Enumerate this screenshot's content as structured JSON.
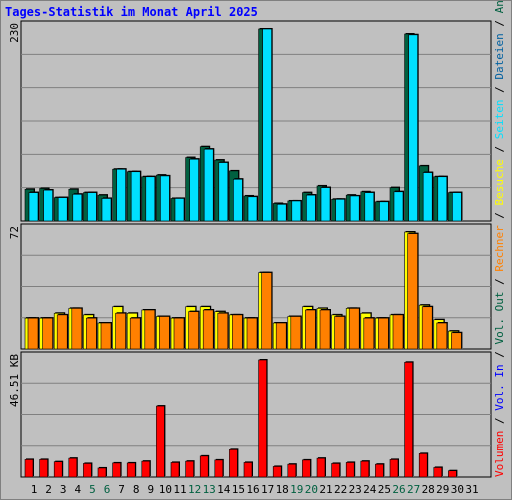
{
  "title": "Tages-Statistik im Monat April 2025",
  "chart_data": {
    "type": "bar",
    "categories": [
      "1",
      "2",
      "3",
      "4",
      "5",
      "6",
      "7",
      "8",
      "9",
      "10",
      "11",
      "12",
      "13",
      "14",
      "15",
      "16",
      "17",
      "18",
      "19",
      "20",
      "21",
      "22",
      "23",
      "24",
      "25",
      "26",
      "27",
      "28",
      "29",
      "30",
      "31"
    ],
    "weekend_color": "#006040",
    "weekend_days": [
      "5",
      "6",
      "12",
      "13",
      "19",
      "20",
      "26",
      "27"
    ],
    "panels": [
      {
        "name": "hits-pages-files",
        "ymax_label": "230",
        "ymax": 230,
        "series": [
          {
            "name": "Anfragen",
            "color": "#006040",
            "values": [
              38,
              39,
              28,
              38,
              34,
              31,
              62,
              59,
              53,
              55,
              27,
              76,
              89,
              73,
              60,
              30,
              230,
              21,
              24,
              34,
              42,
              26,
              31,
              35,
              23,
              40,
              224,
              66,
              53,
              34,
              0
            ]
          },
          {
            "name": "Dateien",
            "color": "#00bfff",
            "values": [
              34,
              37,
              28,
              32,
              34,
              27,
              62,
              59,
              53,
              54,
              27,
              74,
              86,
              70,
              50,
              29,
              230,
              20,
              24,
              31,
              40,
              26,
              30,
              34,
              23,
              35,
              223,
              58,
              53,
              34,
              0
            ]
          },
          {
            "name": "Seiten",
            "color": "#00e0ff",
            "values": [
              34,
              37,
              28,
              32,
              34,
              27,
              62,
              59,
              53,
              54,
              27,
              74,
              86,
              70,
              50,
              29,
              230,
              20,
              24,
              31,
              40,
              26,
              30,
              34,
              23,
              35,
              223,
              58,
              53,
              34,
              0
            ]
          }
        ]
      },
      {
        "name": "visits-sites",
        "ymax_label": "72",
        "ymax": 72,
        "series": [
          {
            "name": "Besuche",
            "color": "#ffff00",
            "values": [
              19,
              19,
              22,
              25,
              21,
              16,
              26,
              22,
              24,
              20,
              19,
              26,
              26,
              23,
              21,
              19,
              47,
              16,
              20,
              26,
              25,
              21,
              25,
              22,
              19,
              21,
              72,
              27,
              18,
              11,
              0
            ]
          },
          {
            "name": "Rechner",
            "color": "#ff8000",
            "values": [
              19,
              19,
              21,
              25,
              19,
              16,
              22,
              19,
              24,
              20,
              19,
              23,
              24,
              22,
              21,
              19,
              47,
              16,
              20,
              24,
              24,
              20,
              25,
              19,
              19,
              21,
              71,
              26,
              16,
              10,
              0
            ]
          }
        ]
      },
      {
        "name": "kbytes",
        "ymax_label": "46.51 KB",
        "ymax": 46.51,
        "series": [
          {
            "name": "Volumen",
            "color": "#ff0000",
            "values": [
              7.0,
              7.0,
              6.1,
              7.5,
              5.4,
              3.6,
              5.6,
              5.6,
              6.3,
              28.2,
              5.8,
              6.3,
              8.4,
              6.8,
              11.0,
              5.8,
              46.51,
              4.2,
              5.1,
              6.8,
              7.5,
              5.4,
              5.8,
              6.3,
              5.1,
              7.0,
              45.6,
              9.4,
              3.8,
              2.5,
              0
            ]
          }
        ]
      }
    ],
    "right_legend": [
      {
        "text": "Volumen",
        "color": "#ff0000"
      },
      {
        "text": "Vol. In",
        "color": "#0000ff"
      },
      {
        "text": "Vol. Out",
        "color": "#006040"
      },
      {
        "text": "Rechner",
        "color": "#ff8000"
      },
      {
        "text": "Besuche",
        "color": "#ffff00"
      },
      {
        "text": "Seiten",
        "color": "#00e0ff"
      },
      {
        "text": "Dateien",
        "color": "#0060a0"
      },
      {
        "text": "Anfragen",
        "color": "#006040"
      }
    ],
    "grid": true
  }
}
